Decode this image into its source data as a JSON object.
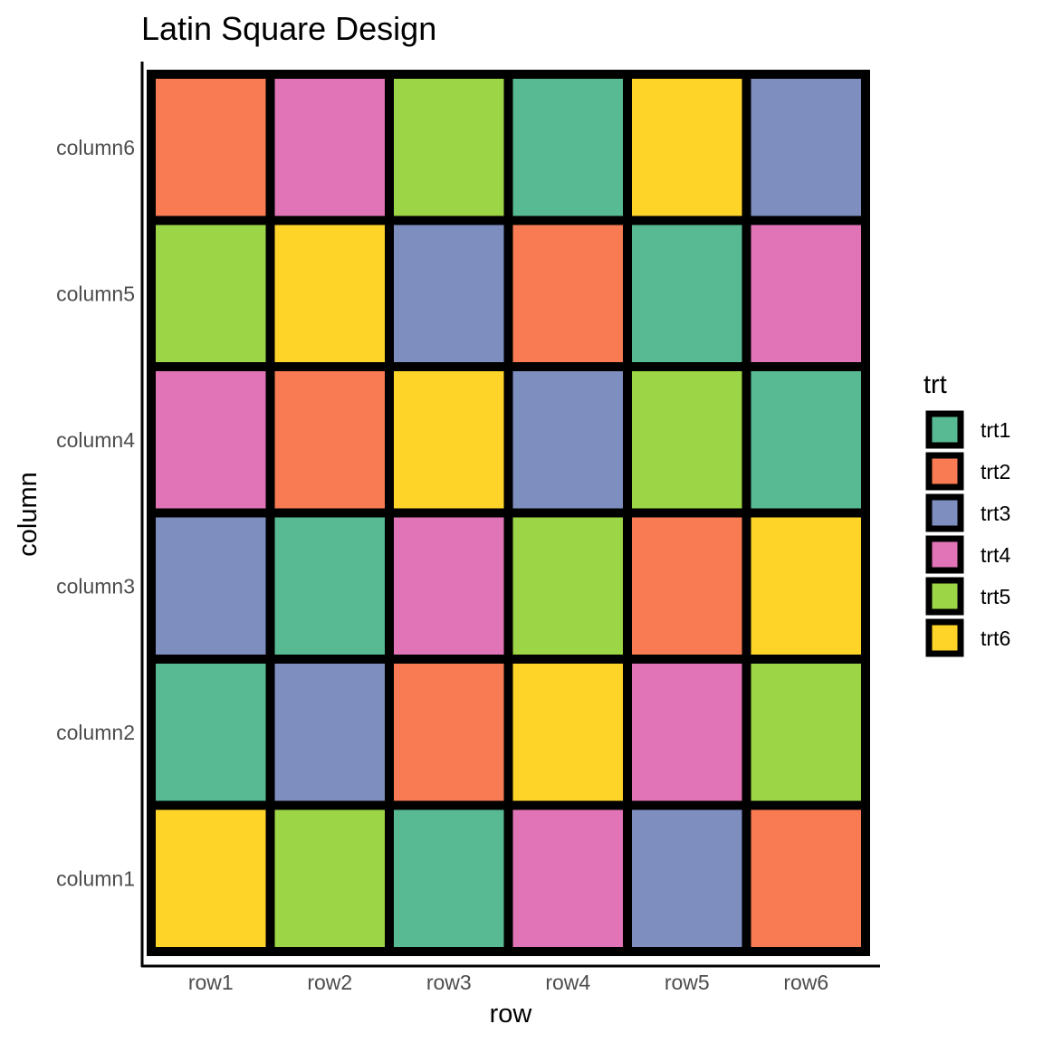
{
  "chart_data": {
    "type": "heatmap",
    "title": "Latin Square Design",
    "xlabel": "row",
    "ylabel": "column",
    "x_categories": [
      "row1",
      "row2",
      "row3",
      "row4",
      "row5",
      "row6"
    ],
    "y_categories": [
      "column1",
      "column2",
      "column3",
      "column4",
      "column5",
      "column6"
    ],
    "cells": [
      [
        "trt6",
        "trt5",
        "trt1",
        "trt4",
        "trt3",
        "trt2"
      ],
      [
        "trt1",
        "trt3",
        "trt2",
        "trt6",
        "trt4",
        "trt5"
      ],
      [
        "trt3",
        "trt1",
        "trt4",
        "trt5",
        "trt2",
        "trt6"
      ],
      [
        "trt4",
        "trt2",
        "trt6",
        "trt3",
        "trt5",
        "trt1"
      ],
      [
        "trt5",
        "trt6",
        "trt3",
        "trt2",
        "trt1",
        "trt4"
      ],
      [
        "trt2",
        "trt4",
        "trt5",
        "trt1",
        "trt6",
        "trt3"
      ]
    ],
    "legend": {
      "title": "trt",
      "placement": "right",
      "entries": [
        {
          "label": "trt1",
          "color": "#58BA93"
        },
        {
          "label": "trt2",
          "color": "#F87B53"
        },
        {
          "label": "trt3",
          "color": "#7D8EBF"
        },
        {
          "label": "trt4",
          "color": "#E074B6"
        },
        {
          "label": "trt5",
          "color": "#9CD545"
        },
        {
          "label": "trt6",
          "color": "#FED428"
        }
      ]
    },
    "tile_border_color": "#000000",
    "grid": false
  }
}
